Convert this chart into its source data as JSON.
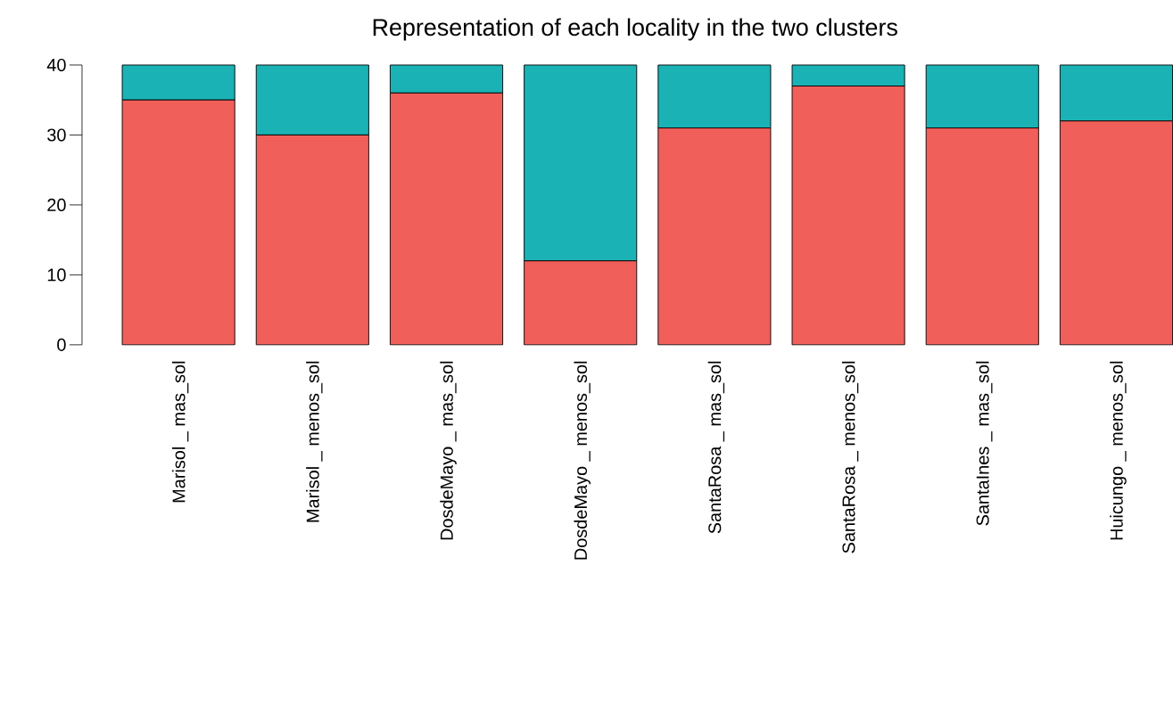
{
  "chart_data": {
    "type": "bar",
    "title": "Representation of each locality in the two clusters",
    "categories": [
      "Marisol _ mas_sol",
      "Marisol _ menos_sol",
      "DosdeMayo _ mas_sol",
      "DosdeMayo _ menos_sol",
      "SantaRosa _ mas_sol",
      "SantaRosa _ menos_sol",
      "SantaInes _ mas_sol",
      "Huicungo _ menos_sol"
    ],
    "stacked": true,
    "series": [
      {
        "color": "#f15f5a",
        "values": [
          35,
          30,
          36,
          12,
          31,
          37,
          31,
          32
        ]
      },
      {
        "color": "#1ab2b5",
        "values": [
          5,
          10,
          4,
          28,
          9,
          3,
          9,
          8
        ]
      }
    ],
    "ylim": [
      0,
      40
    ],
    "yticks": [
      0,
      10,
      20,
      30,
      40
    ]
  }
}
